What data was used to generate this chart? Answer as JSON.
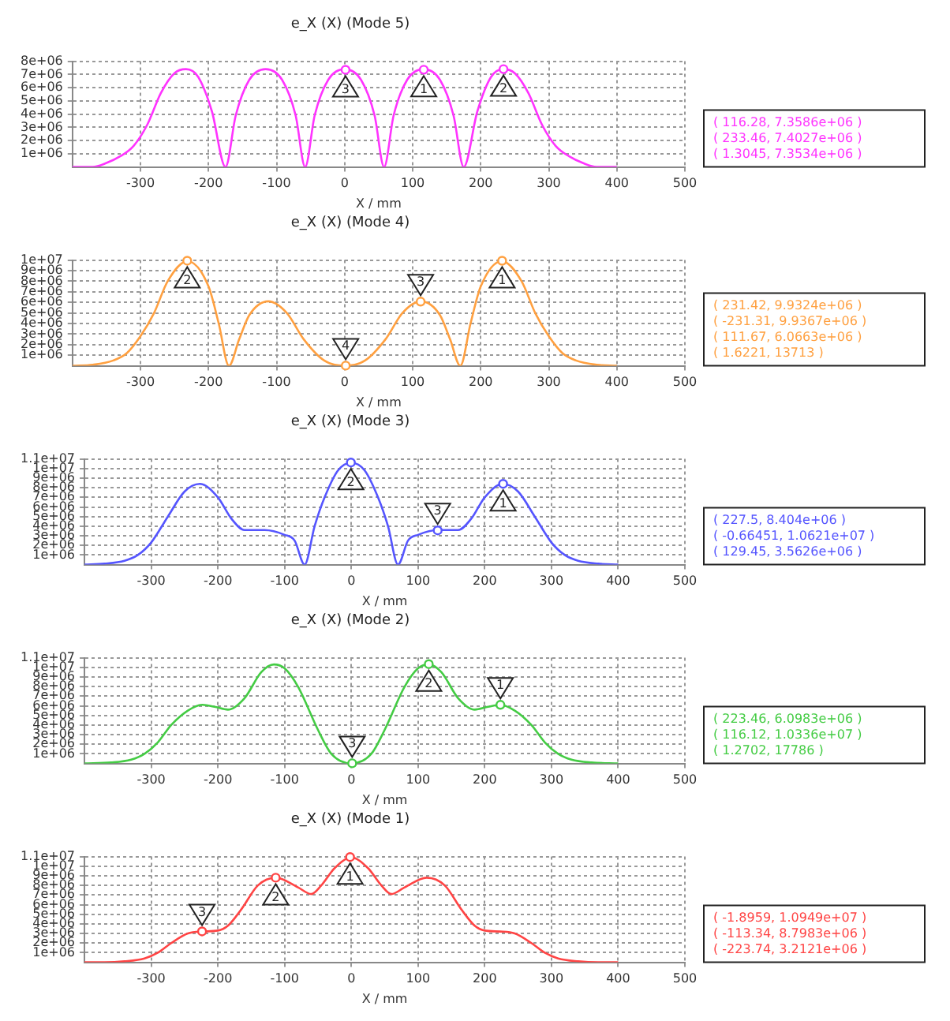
{
  "chart_data": [
    {
      "type": "line",
      "title": "e_X (X) (Mode 5)",
      "xlabel": "X / mm",
      "xlim": [
        -400,
        500
      ],
      "ylim": [
        0,
        8000000
      ],
      "xticks": [
        -300,
        -200,
        -100,
        0,
        100,
        200,
        300,
        400,
        500
      ],
      "yticks": [
        {
          "value": 1000000,
          "label": "1e+06"
        },
        {
          "value": 2000000,
          "label": "2e+06"
        },
        {
          "value": 3000000,
          "label": "3e+06"
        },
        {
          "value": 4000000,
          "label": "4e+06"
        },
        {
          "value": 5000000,
          "label": "5e+06"
        },
        {
          "value": 6000000,
          "label": "6e+06"
        },
        {
          "value": 7000000,
          "label": "7e+06"
        },
        {
          "value": 8000000,
          "label": "8e+06"
        }
      ],
      "grid": true,
      "legend": false,
      "line_style": "solid",
      "series": [
        {
          "color": "#ff33ff",
          "x": [
            -400,
            -370,
            -350,
            -330,
            -310,
            -290,
            -270,
            -250,
            -233,
            -215,
            -195,
            -175,
            -160,
            -140,
            -116,
            -92,
            -72,
            -58,
            -44,
            -24,
            0,
            24,
            44,
            58,
            72,
            92,
            116,
            140,
            160,
            175,
            195,
            215,
            233,
            250,
            270,
            290,
            310,
            330,
            350,
            370,
            400
          ],
          "values": [
            0,
            0,
            300000,
            800000,
            1600000,
            3200000,
            5600000,
            7100000,
            7400000,
            6800000,
            4200000,
            0,
            3900000,
            6600000,
            7400000,
            6600000,
            3900000,
            0,
            3900000,
            6600000,
            7400000,
            6600000,
            3900000,
            0,
            3900000,
            6600000,
            7400000,
            6600000,
            3900000,
            0,
            4200000,
            6800000,
            7400000,
            7100000,
            5600000,
            3200000,
            1600000,
            800000,
            300000,
            0,
            0
          ]
        }
      ],
      "annotations": [
        {
          "text": "1",
          "x": 116.28,
          "y": 7358600
        },
        {
          "text": "2",
          "x": 233.46,
          "y": 7402700
        },
        {
          "text": "3",
          "x": 1.3045,
          "y": 7353400
        },
        "( 116.28, 7.3586e+06 )",
        "( 233.46, 7.4027e+06 )",
        "( 1.3045, 7.3534e+06 )"
      ]
    },
    {
      "type": "line",
      "title": "e_X (X) (Mode 4)",
      "xlabel": "X / mm",
      "xlim": [
        -400,
        500
      ],
      "ylim": [
        0,
        10000000
      ],
      "xticks": [
        -300,
        -200,
        -100,
        0,
        100,
        200,
        300,
        400,
        500
      ],
      "yticks": [
        {
          "value": 1000000,
          "label": "1e+06"
        },
        {
          "value": 2000000,
          "label": "2e+06"
        },
        {
          "value": 3000000,
          "label": "3e+06"
        },
        {
          "value": 4000000,
          "label": "4e+06"
        },
        {
          "value": 5000000,
          "label": "5e+06"
        },
        {
          "value": 6000000,
          "label": "6e+06"
        },
        {
          "value": 7000000,
          "label": "7e+06"
        },
        {
          "value": 8000000,
          "label": "8e+06"
        },
        {
          "value": 9000000,
          "label": "9e+06"
        },
        {
          "value": 10000000,
          "label": "1e+07"
        }
      ],
      "grid": true,
      "legend": false,
      "line_style": "solid",
      "series": [
        {
          "color": "#ffa040",
          "x": [
            -400,
            -370,
            -340,
            -320,
            -300,
            -280,
            -260,
            -231,
            -200,
            -185,
            -170,
            -155,
            -140,
            -112,
            -85,
            -60,
            -30,
            0,
            30,
            60,
            85,
            112,
            140,
            155,
            170,
            185,
            200,
            231,
            260,
            280,
            300,
            320,
            340,
            370,
            400
          ],
          "values": [
            0,
            100000,
            500000,
            1200000,
            2800000,
            5000000,
            8000000,
            9900000,
            7500000,
            4000000,
            0,
            2500000,
            4800000,
            6100000,
            5000000,
            2500000,
            500000,
            0,
            500000,
            2500000,
            5000000,
            6100000,
            4800000,
            2500000,
            0,
            4000000,
            7500000,
            9900000,
            8000000,
            5000000,
            2800000,
            1200000,
            500000,
            100000,
            0
          ]
        }
      ],
      "annotations": [
        {
          "text": "1",
          "x": 231.42,
          "y": 9932400
        },
        {
          "text": "2",
          "x": -231.31,
          "y": 9936700
        },
        {
          "text": "3",
          "x": 111.67,
          "y": 6066300
        },
        {
          "text": "4",
          "x": 1.6221,
          "y": 13713
        },
        "( 231.42, 9.9324e+06 )",
        "( -231.31, 9.9367e+06 )",
        "( 111.67, 6.0663e+06 )",
        "( 1.6221, 13713 )"
      ]
    },
    {
      "type": "line",
      "title": "e_X (X) (Mode 3)",
      "xlabel": "X / mm",
      "xlim": [
        -400,
        500
      ],
      "ylim": [
        0,
        11000000
      ],
      "xticks": [
        -300,
        -200,
        -100,
        0,
        100,
        200,
        300,
        400,
        500
      ],
      "yticks": [
        {
          "value": 1000000,
          "label": "1e+06"
        },
        {
          "value": 2000000,
          "label": "2e+06"
        },
        {
          "value": 3000000,
          "label": "3e+06"
        },
        {
          "value": 4000000,
          "label": "4e+06"
        },
        {
          "value": 5000000,
          "label": "5e+06"
        },
        {
          "value": 6000000,
          "label": "6e+06"
        },
        {
          "value": 7000000,
          "label": "7e+06"
        },
        {
          "value": 8000000,
          "label": "8e+06"
        },
        {
          "value": 9000000,
          "label": "9e+06"
        },
        {
          "value": 10000000,
          "label": "1e+07"
        },
        {
          "value": 11000000,
          "label": "1.1e+07"
        }
      ],
      "grid": true,
      "legend": false,
      "line_style": "solid",
      "series": [
        {
          "color": "#5555ff",
          "x": [
            -400,
            -370,
            -340,
            -320,
            -300,
            -275,
            -250,
            -227,
            -200,
            -180,
            -160,
            -130,
            -100,
            -85,
            -70,
            -55,
            -40,
            -20,
            0,
            20,
            40,
            55,
            70,
            85,
            100,
            130,
            160,
            180,
            200,
            227,
            250,
            275,
            300,
            320,
            340,
            370,
            400
          ],
          "values": [
            0,
            100000,
            400000,
            1000000,
            2300000,
            5000000,
            7600000,
            8400000,
            7000000,
            4800000,
            3600000,
            3600000,
            3100000,
            2500000,
            0,
            4000000,
            7000000,
            9800000,
            10600000,
            9800000,
            7000000,
            4000000,
            0,
            2500000,
            3100000,
            3600000,
            3600000,
            4800000,
            7000000,
            8400000,
            7600000,
            5000000,
            2300000,
            1000000,
            400000,
            100000,
            0
          ]
        }
      ],
      "annotations": [
        {
          "text": "1",
          "x": 227.5,
          "y": 8404000
        },
        {
          "text": "2",
          "x": -0.66451,
          "y": 10621000
        },
        {
          "text": "3",
          "x": 129.45,
          "y": 3562600
        },
        "( 227.5, 8.404e+06 )",
        "( -0.66451, 1.0621e+07 )",
        "( 129.45, 3.5626e+06 )"
      ]
    },
    {
      "type": "line",
      "title": "e_X (X) (Mode 2)",
      "xlabel": "X / mm",
      "xlim": [
        -400,
        500
      ],
      "ylim": [
        0,
        11000000
      ],
      "xticks": [
        -300,
        -200,
        -100,
        0,
        100,
        200,
        300,
        400,
        500
      ],
      "yticks": [
        {
          "value": 1000000,
          "label": "1e+06"
        },
        {
          "value": 2000000,
          "label": "2e+06"
        },
        {
          "value": 3000000,
          "label": "3e+06"
        },
        {
          "value": 4000000,
          "label": "4e+06"
        },
        {
          "value": 5000000,
          "label": "5e+06"
        },
        {
          "value": 6000000,
          "label": "6e+06"
        },
        {
          "value": 7000000,
          "label": "7e+06"
        },
        {
          "value": 8000000,
          "label": "8e+06"
        },
        {
          "value": 9000000,
          "label": "9e+06"
        },
        {
          "value": 10000000,
          "label": "1e+07"
        },
        {
          "value": 11000000,
          "label": "1.1e+07"
        }
      ],
      "grid": true,
      "legend": false,
      "line_style": "solid",
      "series": [
        {
          "color": "#44cc44",
          "x": [
            -400,
            -360,
            -330,
            -310,
            -290,
            -270,
            -245,
            -223,
            -205,
            -185,
            -160,
            -135,
            -116,
            -100,
            -80,
            -50,
            -30,
            0,
            30,
            50,
            80,
            100,
            116,
            135,
            160,
            185,
            205,
            223,
            245,
            270,
            290,
            310,
            330,
            360,
            400
          ],
          "values": [
            0,
            100000,
            400000,
            1000000,
            2200000,
            4000000,
            5500000,
            6100000,
            5900000,
            5600000,
            6800000,
            9500000,
            10300000,
            9900000,
            8000000,
            3500000,
            1000000,
            0,
            1000000,
            3500000,
            8000000,
            9900000,
            10300000,
            9500000,
            6800000,
            5600000,
            5900000,
            6100000,
            5500000,
            4000000,
            2200000,
            1000000,
            400000,
            100000,
            0
          ]
        }
      ],
      "annotations": [
        {
          "text": "1",
          "x": 223.46,
          "y": 6098300
        },
        {
          "text": "2",
          "x": 116.12,
          "y": 10336000
        },
        {
          "text": "3",
          "x": 1.2702,
          "y": 17786
        },
        "( 223.46, 6.0983e+06 )",
        "( 116.12, 1.0336e+07 )",
        "( 1.2702, 17786 )"
      ]
    },
    {
      "type": "line",
      "title": "e_X (X) (Mode 1)",
      "xlabel": "X / mm",
      "xlim": [
        -400,
        500
      ],
      "ylim": [
        0,
        11000000
      ],
      "xticks": [
        -300,
        -200,
        -100,
        0,
        100,
        200,
        300,
        400,
        500
      ],
      "yticks": [
        {
          "value": 1000000,
          "label": "1e+06"
        },
        {
          "value": 2000000,
          "label": "2e+06"
        },
        {
          "value": 3000000,
          "label": "3e+06"
        },
        {
          "value": 4000000,
          "label": "4e+06"
        },
        {
          "value": 5000000,
          "label": "5e+06"
        },
        {
          "value": 6000000,
          "label": "6e+06"
        },
        {
          "value": 7000000,
          "label": "7e+06"
        },
        {
          "value": 8000000,
          "label": "8e+06"
        },
        {
          "value": 9000000,
          "label": "9e+06"
        },
        {
          "value": 10000000,
          "label": "1e+07"
        },
        {
          "value": 11000000,
          "label": "1.1e+07"
        }
      ],
      "grid": true,
      "legend": false,
      "line_style": "solid",
      "series": [
        {
          "color": "#ff4444",
          "x": [
            -400,
            -370,
            -340,
            -310,
            -290,
            -270,
            -245,
            -223,
            -200,
            -185,
            -165,
            -140,
            -113,
            -80,
            -60,
            -45,
            -25,
            0,
            25,
            45,
            60,
            80,
            113,
            140,
            165,
            185,
            200,
            223,
            245,
            270,
            290,
            310,
            340,
            370,
            400
          ],
          "values": [
            0,
            0,
            100000,
            400000,
            1000000,
            2000000,
            3000000,
            3200000,
            3300000,
            3800000,
            5500000,
            8000000,
            8800000,
            7800000,
            7100000,
            8000000,
            9800000,
            10900000,
            9800000,
            8000000,
            7100000,
            7800000,
            8800000,
            8000000,
            5500000,
            3800000,
            3300000,
            3200000,
            3000000,
            2000000,
            1000000,
            400000,
            100000,
            0,
            0
          ]
        }
      ],
      "annotations": [
        {
          "text": "1",
          "x": -1.8959,
          "y": 10949000
        },
        {
          "text": "2",
          "x": -113.34,
          "y": 8798300
        },
        {
          "text": "3",
          "x": -223.74,
          "y": 3212100
        },
        "( -1.8959, 1.0949e+07 )",
        "( -113.34, 8.7983e+06 )",
        "( -223.74, 3.2121e+06 )"
      ]
    }
  ]
}
